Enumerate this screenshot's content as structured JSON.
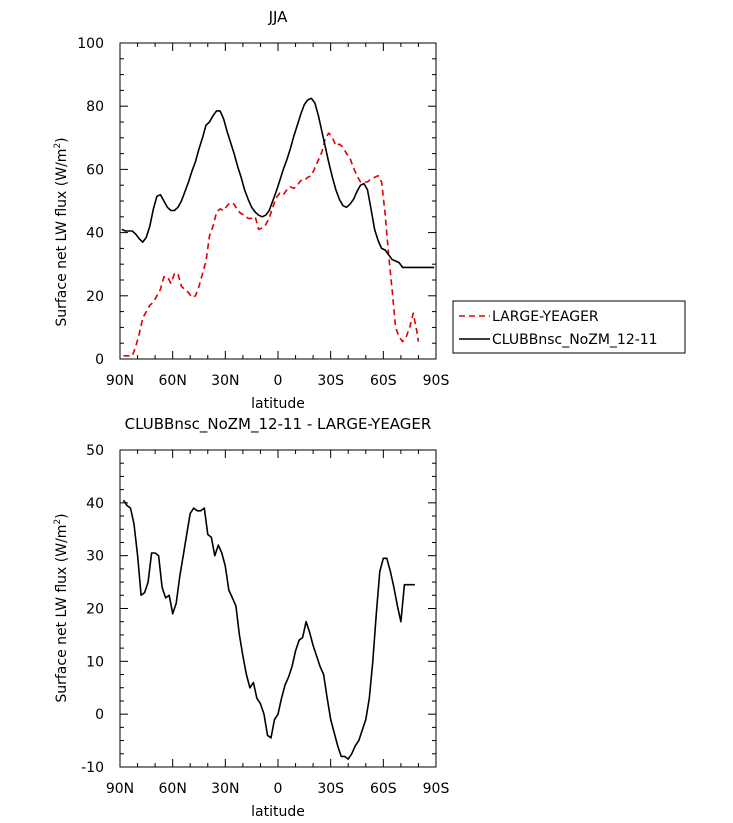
{
  "chart_data": [
    {
      "type": "line",
      "title": "JJA",
      "xlabel": "latitude",
      "ylabel": "Surface net LW flux (W/m²)",
      "ylabel_main": "Surface net LW flux (W/m",
      "ylabel_sup": "2",
      "ylabel_end": ")",
      "xlim": [
        -90,
        90
      ],
      "ylim": [
        0,
        100
      ],
      "xticks": [
        -90,
        -60,
        -30,
        0,
        30,
        60,
        90
      ],
      "xtick_labels": [
        "90N",
        "60N",
        "30N",
        "0",
        "30S",
        "60S",
        "90S"
      ],
      "yticks": [
        0,
        20,
        40,
        60,
        80,
        100
      ],
      "ytick_labels": [
        "0",
        "20",
        "40",
        "60",
        "80",
        "100"
      ],
      "legend": {
        "position": "right"
      },
      "series": [
        {
          "name": "LARGE-YEAGER",
          "color": "#dd0000",
          "dash": true,
          "x": [
            -88,
            -85,
            -83,
            -81,
            -79,
            -77,
            -75,
            -73,
            -71,
            -69,
            -67,
            -65,
            -63,
            -61,
            -59,
            -57,
            -55,
            -53,
            -51,
            -49,
            -47,
            -45,
            -43,
            -41,
            -39,
            -37,
            -35,
            -33,
            -31,
            -29,
            -27,
            -25,
            -23,
            -21,
            -19,
            -17,
            -15,
            -13,
            -11,
            -9,
            -7,
            -5,
            -3,
            -1,
            1,
            3,
            5,
            7,
            9,
            11,
            13,
            15,
            17,
            19,
            21,
            23,
            25,
            27,
            29,
            31,
            33,
            35,
            37,
            39,
            41,
            43,
            45,
            47,
            49,
            51,
            53,
            55,
            57,
            59,
            61,
            63,
            65,
            67,
            69,
            71,
            73,
            75,
            77,
            79,
            80
          ],
          "y": [
            1,
            1,
            1,
            4,
            8,
            13,
            15,
            17,
            18,
            20,
            22,
            26,
            26,
            24,
            27,
            27,
            23,
            22,
            21,
            19.5,
            20,
            23,
            27,
            31,
            39,
            42,
            46.5,
            47.5,
            47,
            48.5,
            49.5,
            49,
            47,
            46,
            45.5,
            44.5,
            44.5,
            45,
            41,
            41.5,
            42.5,
            44.5,
            48,
            51,
            52.5,
            52,
            53.5,
            54.5,
            54,
            55,
            56.5,
            56.5,
            57.5,
            58,
            60.5,
            63,
            65.5,
            70,
            71.5,
            70,
            67.5,
            68,
            67,
            65,
            63.5,
            60.5,
            58,
            56,
            56,
            56,
            57,
            57.5,
            58,
            56,
            46,
            33,
            22,
            10,
            7,
            5.5,
            7,
            10,
            14.5,
            9,
            5.5
          ]
        },
        {
          "name": "CLUBBnsc_NoZM_12-11",
          "color": "#000000",
          "dash": false,
          "x": [
            -89,
            -87,
            -85,
            -83,
            -81,
            -79,
            -77,
            -75,
            -73,
            -71,
            -69,
            -67,
            -65,
            -63,
            -61,
            -59,
            -57,
            -55,
            -53,
            -51,
            -49,
            -47,
            -45,
            -43,
            -41,
            -39,
            -37,
            -35,
            -33,
            -31,
            -29,
            -27,
            -25,
            -23,
            -21,
            -19,
            -17,
            -15,
            -13,
            -11,
            -9,
            -7,
            -5,
            -3,
            -1,
            1,
            3,
            5,
            7,
            9,
            11,
            13,
            15,
            17,
            19,
            21,
            23,
            25,
            27,
            29,
            31,
            33,
            35,
            37,
            39,
            41,
            43,
            45,
            47,
            49,
            51,
            53,
            55,
            57,
            59,
            61,
            63,
            65,
            67,
            69,
            71,
            73,
            75,
            77,
            79,
            81,
            83,
            85,
            87,
            89
          ],
          "y": [
            41,
            40.5,
            40.5,
            40.5,
            39.5,
            38,
            37,
            38.5,
            42,
            47.5,
            51.5,
            52,
            50,
            48,
            47,
            47,
            48,
            50,
            53,
            56,
            59.5,
            62.5,
            66.5,
            70,
            74,
            75,
            77,
            78.5,
            78.5,
            76,
            72,
            68.5,
            65,
            61,
            57.5,
            53.5,
            50.5,
            48,
            46.5,
            45.5,
            45,
            45.5,
            47,
            50,
            53,
            56.5,
            60,
            63,
            66.5,
            70.5,
            74,
            77.5,
            80.5,
            82,
            82.5,
            81,
            77,
            72,
            67,
            62,
            57.5,
            53.5,
            50.5,
            48.5,
            48,
            49,
            50.5,
            53,
            55,
            55.5,
            53.5,
            47.5,
            41,
            37.5,
            35,
            34.5,
            33,
            31.5,
            31,
            30.5,
            29,
            29,
            29,
            29,
            29,
            29,
            29,
            29,
            29,
            29
          ]
        }
      ]
    },
    {
      "type": "line",
      "title": "CLUBBnsc_NoZM_12-11 - LARGE-YEAGER",
      "xlabel": "latitude",
      "ylabel": "Surface net LW flux (W/m²)",
      "ylabel_main": "Surface net LW flux (W/m",
      "ylabel_sup": "2",
      "ylabel_end": ")",
      "xlim": [
        -90,
        90
      ],
      "ylim": [
        -10,
        50
      ],
      "xticks": [
        -90,
        -60,
        -30,
        0,
        30,
        60,
        90
      ],
      "xtick_labels": [
        "90N",
        "60N",
        "30N",
        "0",
        "30S",
        "60S",
        "90S"
      ],
      "yticks": [
        -10,
        0,
        10,
        20,
        30,
        40,
        50
      ],
      "ytick_labels": [
        "-10",
        "0",
        "10",
        "20",
        "30",
        "40",
        "50"
      ],
      "series": [
        {
          "color": "#000000",
          "dash": false,
          "x": [
            -88,
            -86,
            -84,
            -82,
            -80,
            -78,
            -76,
            -74,
            -72,
            -70,
            -68,
            -66,
            -64,
            -62,
            -60,
            -58,
            -56,
            -54,
            -52,
            -50,
            -48,
            -46,
            -44,
            -42,
            -40,
            -38,
            -36,
            -34,
            -32,
            -30,
            -28,
            -26,
            -24,
            -22,
            -20,
            -18,
            -16,
            -14,
            -12,
            -10,
            -8,
            -6,
            -4,
            -2,
            0,
            2,
            4,
            6,
            8,
            10,
            12,
            14,
            16,
            18,
            20,
            22,
            24,
            26,
            28,
            30,
            32,
            34,
            36,
            38,
            40,
            42,
            44,
            46,
            48,
            50,
            52,
            54,
            56,
            58,
            60,
            62,
            64,
            66,
            68,
            70,
            72,
            74,
            76,
            78
          ],
          "y": [
            40.5,
            39.5,
            39,
            36,
            30,
            22.5,
            23,
            25,
            30.5,
            30.5,
            30,
            24,
            22,
            22.5,
            19,
            21,
            26,
            30,
            34,
            38,
            39,
            38.5,
            38.5,
            39,
            34,
            33.5,
            30,
            32,
            30.5,
            28,
            23.5,
            22,
            20.5,
            15,
            11,
            7.5,
            5,
            6,
            3,
            2,
            0,
            -4,
            -4.5,
            -1,
            0,
            3,
            5.5,
            7,
            9,
            12,
            14,
            14.5,
            17.5,
            15.5,
            13,
            11,
            9,
            7.5,
            3,
            -1,
            -3.5,
            -6,
            -8,
            -8,
            -8.5,
            -7.5,
            -6,
            -5,
            -3,
            -1,
            3,
            10,
            19,
            27,
            29.5,
            29.5,
            27,
            24,
            20.5,
            17.5,
            24.5,
            24.5,
            24.5,
            24.5
          ]
        }
      ]
    }
  ]
}
